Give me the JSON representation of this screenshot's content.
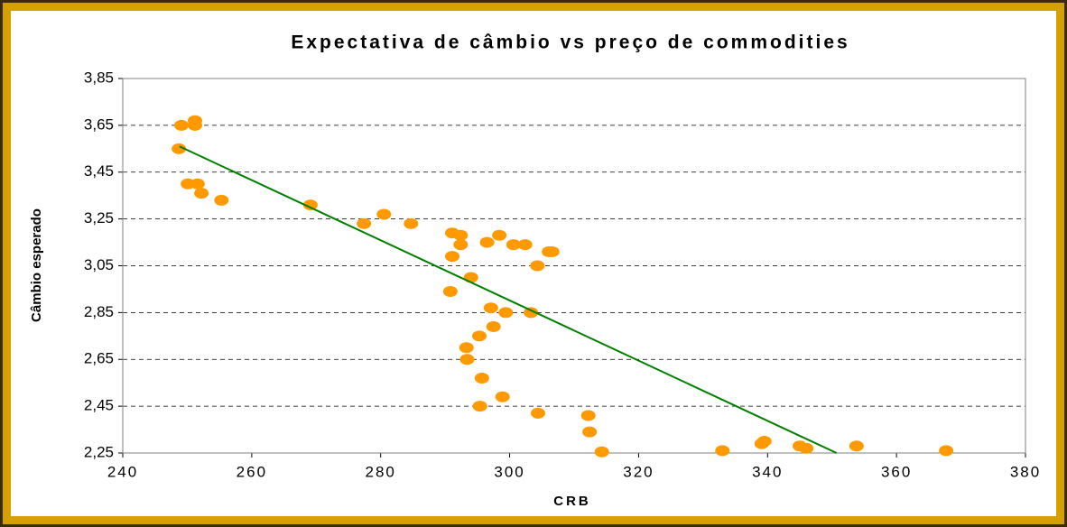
{
  "chart_data": {
    "type": "scatter",
    "title": "Expectativa de câmbio vs preço de commodities",
    "x_label": "CRB",
    "y_label": "Câmbio esperado",
    "color": "#ff9900",
    "x": [
      248.7,
      249.1,
      251.2,
      251.2,
      250.1,
      251.6,
      252.2,
      255.3,
      269.1,
      277.4,
      280.5,
      284.7,
      291.1,
      292.4,
      292.4,
      291.1,
      296.5,
      298.4,
      300.6,
      302.4,
      304.3,
      306.1,
      306.6,
      294.0,
      290.8,
      297.1,
      299.4,
      303.3,
      297.5,
      295.3,
      293.3,
      293.4,
      295.7,
      298.9,
      295.4,
      304.4,
      312.2,
      312.4,
      314.3,
      333.0,
      339.1,
      339.5,
      345.0,
      346.0,
      353.8,
      367.7
    ],
    "values": [
      3.55,
      3.65,
      3.67,
      3.65,
      3.4,
      3.4,
      3.36,
      3.33,
      3.31,
      3.23,
      3.27,
      3.23,
      3.19,
      3.18,
      3.14,
      3.09,
      3.15,
      3.18,
      3.14,
      3.14,
      3.05,
      3.11,
      3.11,
      3.0,
      2.94,
      2.87,
      2.85,
      2.85,
      2.79,
      2.75,
      2.7,
      2.65,
      2.57,
      2.49,
      2.45,
      2.42,
      2.41,
      2.34,
      2.255,
      2.26,
      2.29,
      2.3,
      2.28,
      2.27,
      2.28,
      2.26
    ],
    "trendline": {
      "x": [
        248.8,
        350.7
      ],
      "values": [
        3.56,
        2.25
      ],
      "color": "#008000"
    },
    "xlim": [
      240,
      380
    ],
    "xticks": [
      240,
      260,
      280,
      300,
      320,
      340,
      360,
      380
    ],
    "ylim": [
      2.25,
      3.85
    ],
    "yticks": [
      {
        "value": 2.25,
        "label": "2,25"
      },
      {
        "value": 2.45,
        "label": "2,45"
      },
      {
        "value": 2.65,
        "label": "2,65"
      },
      {
        "value": 2.85,
        "label": "2,85"
      },
      {
        "value": 3.05,
        "label": "3,05"
      },
      {
        "value": 3.25,
        "label": "3,25"
      },
      {
        "value": 3.45,
        "label": "3,45"
      },
      {
        "value": 3.65,
        "label": "3,65"
      },
      {
        "value": 3.85,
        "label": "3,85"
      }
    ],
    "grid": true
  }
}
